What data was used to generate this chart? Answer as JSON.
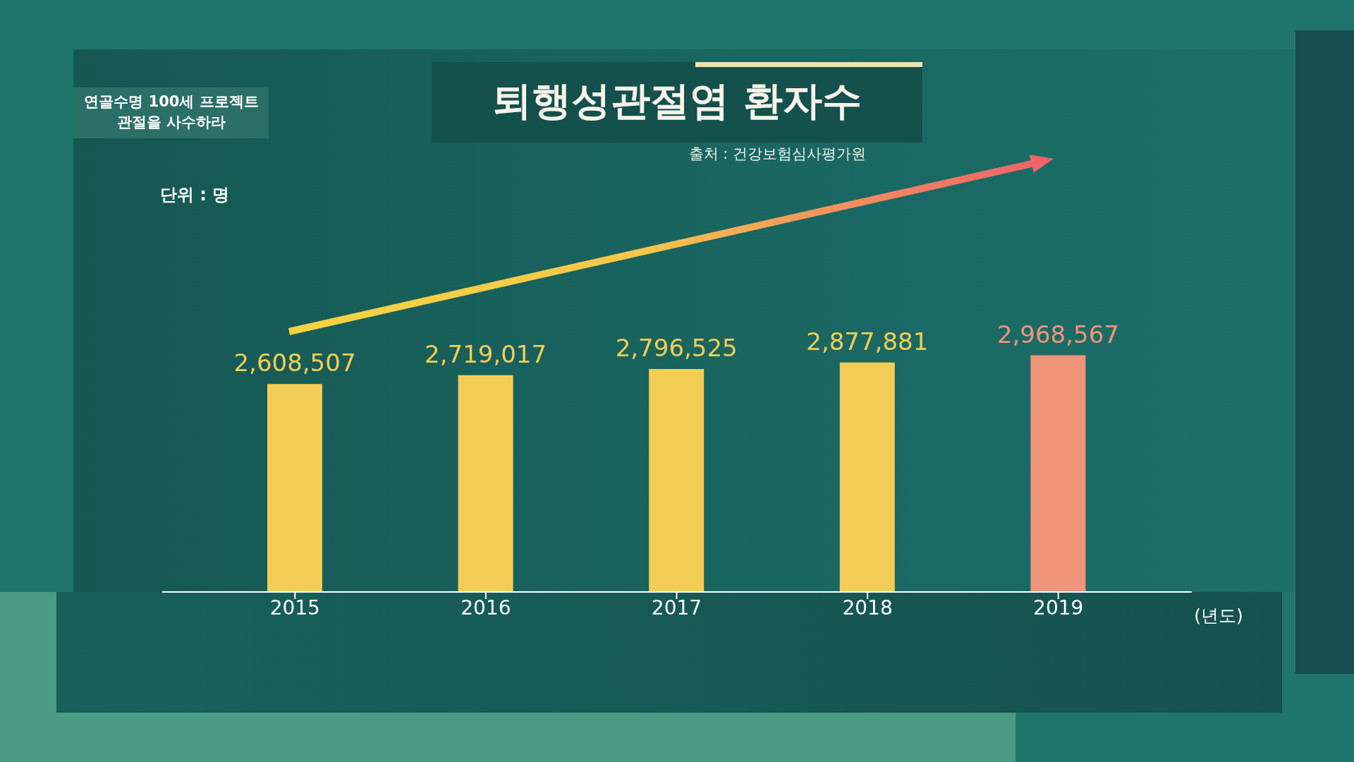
{
  "chart_data": {
    "type": "bar",
    "title": "퇴행성관절염 환자수",
    "xlabel": "(년도)",
    "annotations": [
      "출처 : 건강보험심사평가원",
      "단위 : 명",
      "연골수명 100세 프로젝트 관절을 사수하라"
    ],
    "categories": [
      "2015",
      "2016",
      "2017",
      "2018",
      "2019"
    ],
    "values": [
      2608507,
      2719017,
      2796525,
      2877881,
      2968567
    ],
    "value_labels": [
      "2,608,507",
      "2,719,017",
      "2,796,525",
      "2,877,881",
      "2,968,567"
    ],
    "colors": [
      "#f3cd55",
      "#f3cd55",
      "#f3cd55",
      "#f3cd55",
      "#f09479"
    ],
    "tick_labels": "x"
  }
}
